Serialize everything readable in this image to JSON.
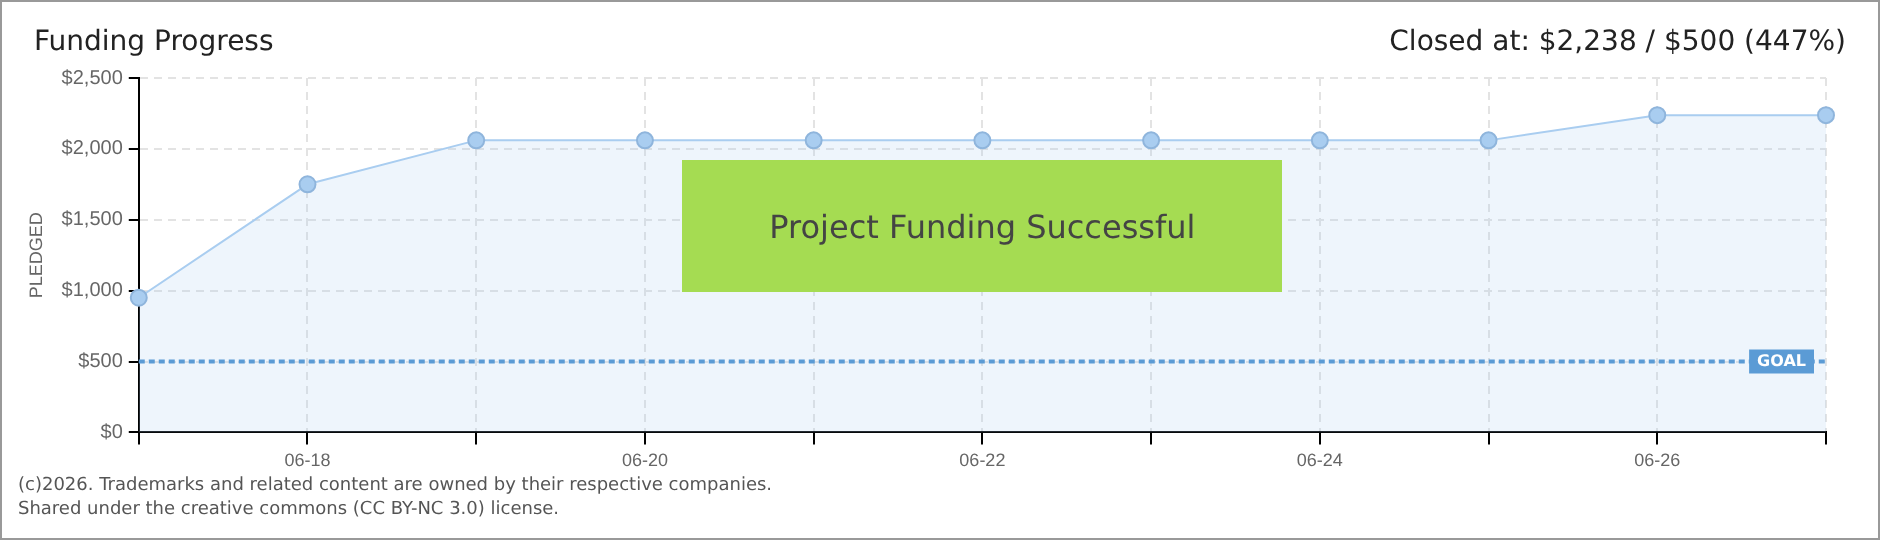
{
  "chart_data": {
    "type": "area",
    "title": "Funding Progress",
    "subtitle": "Closed at: $2,238 / $500 (447%)",
    "ylabel": "PLEDGED",
    "categories": [
      null,
      "06-18",
      null,
      "06-20",
      null,
      "06-22",
      null,
      "06-24",
      null,
      "06-26",
      null
    ],
    "series": [
      {
        "color": "#a9cdf0",
        "values": [
          950,
          1750,
          2060,
          2060,
          2060,
          2060,
          2060,
          2060,
          2060,
          2238,
          2238
        ]
      }
    ],
    "ylim": [
      0,
      2500
    ],
    "yticks": [
      {
        "value": 0,
        "label": "$0"
      },
      {
        "value": 500,
        "label": "$500"
      },
      {
        "value": 1000,
        "label": "$1,000"
      },
      {
        "value": 1500,
        "label": "$1,500"
      },
      {
        "value": 2000,
        "label": "$2,000"
      },
      {
        "value": 2500,
        "label": "$2,500"
      }
    ],
    "grid": true,
    "marker": "circle",
    "line_style": "solid",
    "legend": false,
    "ref_lines": [
      {
        "axis": "y",
        "value": 500,
        "label": "GOAL",
        "color": "#5b9bd5",
        "line_style": "dotted"
      }
    ],
    "annotations": [
      "Project Funding Successful",
      "(c)2026. Trademarks and related content are owned by their respective companies.",
      "Shared under the creative commons (CC BY-NC 3.0) license."
    ]
  }
}
